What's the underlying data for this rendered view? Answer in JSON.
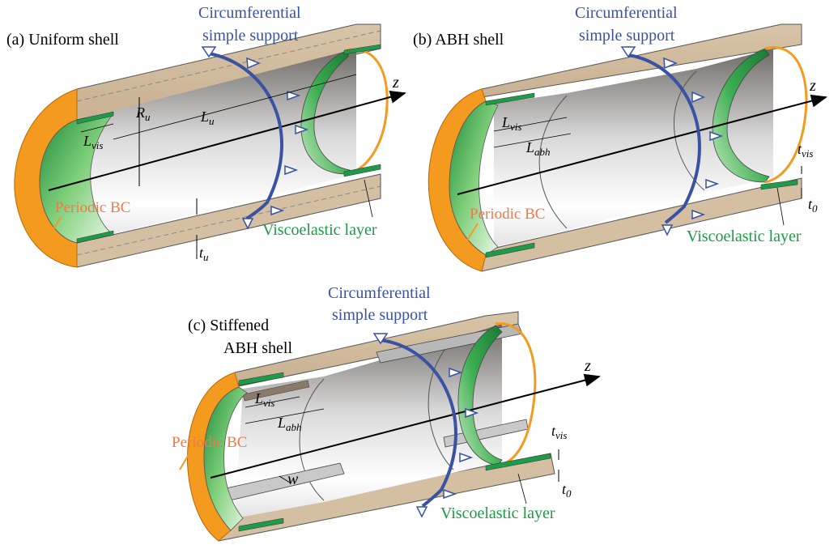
{
  "panels": {
    "a": {
      "title": "(a) Uniform shell",
      "support_label_line1": "Circumferential",
      "support_label_line2": "simple support",
      "axis_label": "z",
      "radius_label_main": "R",
      "radius_label_sub": "u",
      "length_label_main": "L",
      "length_label_sub": "u",
      "vis_length_main": "L",
      "vis_length_sub": "vis",
      "thickness_main": "t",
      "thickness_sub": "u",
      "bc_label": "Periodic BC",
      "layer_label": "Viscoelastic layer"
    },
    "b": {
      "title": "(b) ABH shell",
      "support_label_line1": "Circumferential",
      "support_label_line2": "simple support",
      "axis_label": "z",
      "vis_length_main": "L",
      "vis_length_sub": "vis",
      "abh_length_main": "L",
      "abh_length_sub": "abh",
      "tvis_main": "t",
      "tvis_sub": "vis",
      "t0_main": "t",
      "t0_sub": "0",
      "bc_label": "Periodic BC",
      "layer_label": "Viscoelastic layer"
    },
    "c": {
      "title_line1": "(c) Stiffened",
      "title_line2": "ABH shell",
      "support_label_line1": "Circumferential",
      "support_label_line2": "simple support",
      "axis_label": "z",
      "vis_length_main": "L",
      "vis_length_sub": "vis",
      "abh_length_main": "L",
      "abh_length_sub": "abh",
      "width_label": "w",
      "tvis_main": "t",
      "tvis_sub": "vis",
      "t0_main": "t",
      "t0_sub": "0",
      "bc_label": "Periodic BC",
      "layer_label": "Viscoelastic layer"
    }
  },
  "colors": {
    "shell_outer": "#d4bfa3",
    "shell_edge": "#c8ad8a",
    "orange_end": "#f39a1f",
    "viscoelastic": "#1f9a4a",
    "support": "#3a52a3",
    "bc_text": "#ee7a4a",
    "layer_text": "#1b9a48",
    "stiffener": "#b8b8b8"
  }
}
